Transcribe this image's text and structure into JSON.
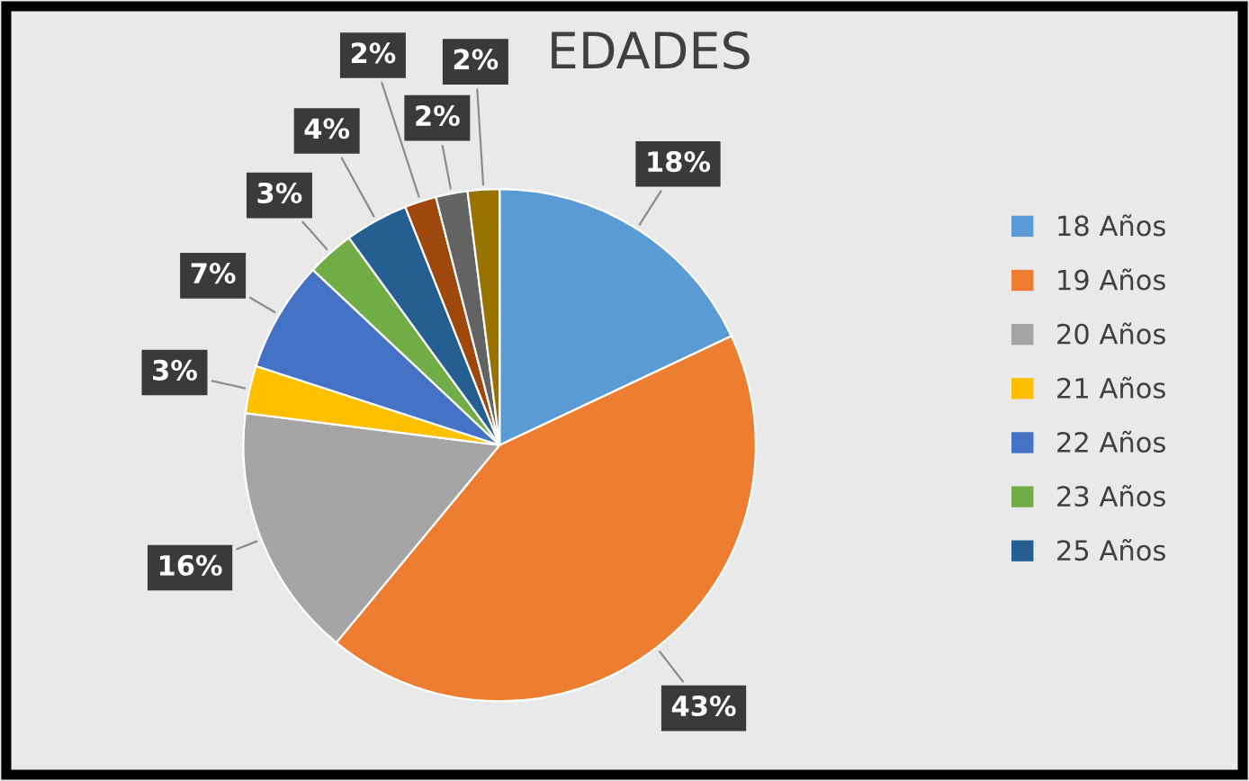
{
  "chart_data": {
    "type": "pie",
    "title": "EDADES",
    "categories": [
      "18 Años",
      "19 Años",
      "20 Años",
      "21 Años",
      "22 Años",
      "23 Años",
      "25 Años",
      null,
      null,
      null
    ],
    "values": [
      18,
      43,
      16,
      3,
      7,
      3,
      4,
      2,
      2,
      2
    ],
    "colors": [
      "#5b9bd5",
      "#ed7d31",
      "#a5a5a5",
      "#ffc000",
      "#4472c4",
      "#70ad47",
      "#255e91",
      "#9e480e",
      "#636363",
      "#997300"
    ],
    "value_labels": [
      "18%",
      "43%",
      "16%",
      "3%",
      "7%",
      "3%",
      "4%",
      "2%",
      "2%",
      "2%"
    ],
    "legend": "right"
  }
}
